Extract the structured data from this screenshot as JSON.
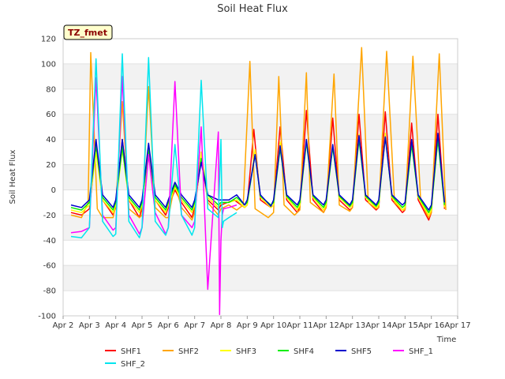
{
  "chart_data": {
    "type": "line",
    "title": "Soil Heat Flux",
    "xlabel": "Time",
    "ylabel": "Soil Heat Flux",
    "badge": "TZ_fmet",
    "xlim": [
      2,
      17
    ],
    "ylim": [
      -100,
      120
    ],
    "xticks": [
      {
        "v": 2,
        "label": "Apr 2"
      },
      {
        "v": 3,
        "label": "Apr 3"
      },
      {
        "v": 4,
        "label": "Apr 4"
      },
      {
        "v": 5,
        "label": "Apr 5"
      },
      {
        "v": 6,
        "label": "Apr 6"
      },
      {
        "v": 7,
        "label": "Apr 7"
      },
      {
        "v": 8,
        "label": "Apr 8"
      },
      {
        "v": 9,
        "label": "Apr 9"
      },
      {
        "v": 10,
        "label": "Apr 10"
      },
      {
        "v": 11,
        "label": "Apr 11"
      },
      {
        "v": 12,
        "label": "Apr 12"
      },
      {
        "v": 13,
        "label": "Apr 13"
      },
      {
        "v": 14,
        "label": "Apr 14"
      },
      {
        "v": 15,
        "label": "Apr 15"
      },
      {
        "v": 16,
        "label": "Apr 16"
      },
      {
        "v": 17,
        "label": "Apr 17"
      }
    ],
    "yticks": [
      -100,
      -80,
      -60,
      -40,
      -20,
      0,
      20,
      40,
      60,
      80,
      100,
      120
    ],
    "grid": true,
    "legend_position": "bottom",
    "series": [
      {
        "name": "SHF1",
        "color": "#ff0000",
        "x": [
          2.3,
          2.7,
          3.0,
          3.25,
          3.5,
          3.9,
          4.0,
          4.25,
          4.5,
          4.9,
          5.0,
          5.25,
          5.5,
          5.9,
          6.0,
          6.25,
          6.5,
          6.9,
          7.0,
          7.25,
          7.5,
          7.9,
          8.0,
          8.25,
          8.5,
          8.9,
          9.0,
          9.25,
          9.5,
          9.9,
          10.0,
          10.25,
          10.5,
          10.9,
          11.0,
          11.25,
          11.5,
          11.9,
          12.0,
          12.25,
          12.5,
          12.9,
          13.0,
          13.25,
          13.5,
          13.9,
          14.0,
          14.25,
          14.5,
          14.9,
          15.0,
          15.25,
          15.5,
          15.9,
          16.0,
          16.25,
          16.5
        ],
        "y": [
          -18,
          -20,
          -15,
          35,
          -8,
          -20,
          -14,
          40,
          -8,
          -22,
          -14,
          35,
          -8,
          -20,
          -14,
          0,
          -10,
          -22,
          -14,
          25,
          -8,
          -16,
          -12,
          -10,
          -8,
          -14,
          -12,
          48,
          -8,
          -14,
          -12,
          50,
          -8,
          -18,
          -14,
          63,
          -8,
          -18,
          -14,
          57,
          -8,
          -16,
          -14,
          60,
          -8,
          -16,
          -14,
          62,
          -8,
          -18,
          -16,
          53,
          -8,
          -24,
          -18,
          60,
          -15
        ]
      },
      {
        "name": "SHF2",
        "color": "#ffa500",
        "x": [
          2.3,
          2.7,
          2.95,
          3.05,
          3.3,
          3.5,
          3.9,
          4.0,
          4.25,
          4.5,
          4.9,
          5.0,
          5.25,
          5.5,
          5.9,
          6.0,
          6.25,
          6.5,
          6.9,
          7.0,
          7.25,
          7.5,
          7.9,
          8.0,
          8.3,
          8.6,
          8.85,
          9.1,
          9.3,
          9.8,
          10.0,
          10.2,
          10.4,
          10.8,
          11.0,
          11.25,
          11.4,
          11.9,
          12.0,
          12.3,
          12.5,
          12.9,
          13.0,
          13.35,
          13.6,
          13.9,
          14.0,
          14.3,
          14.6,
          14.9,
          15.0,
          15.3,
          15.6,
          15.9,
          16.0,
          16.3,
          16.55
        ],
        "y": [
          -20,
          -22,
          -10,
          109,
          -15,
          -22,
          -22,
          -12,
          70,
          -15,
          -22,
          -20,
          82,
          -14,
          -22,
          -22,
          5,
          -14,
          -24,
          -18,
          30,
          -10,
          -20,
          -15,
          -12,
          -16,
          -12,
          102,
          -15,
          -22,
          -18,
          90,
          -12,
          -20,
          -16,
          93,
          -10,
          -18,
          -14,
          92,
          -12,
          -17,
          -14,
          113,
          -10,
          -15,
          -14,
          110,
          -10,
          -16,
          -16,
          106,
          -10,
          -22,
          -18,
          108,
          -16
        ]
      },
      {
        "name": "SHF3",
        "color": "#ffff00",
        "x": [
          2.3,
          2.7,
          3.0,
          3.25,
          3.5,
          3.9,
          4.0,
          4.25,
          4.5,
          4.9,
          5.0,
          5.25,
          5.5,
          5.9,
          6.0,
          6.25,
          6.5,
          6.9,
          7.0,
          7.25,
          7.5,
          7.9,
          8.0,
          8.3,
          8.6,
          8.9,
          9.0,
          9.3,
          9.5,
          9.9,
          10.0,
          10.25,
          10.5,
          10.9,
          11.0,
          11.25,
          11.5,
          11.9,
          12.0,
          12.25,
          12.5,
          12.9,
          13.0,
          13.25,
          13.5,
          13.9,
          14.0,
          14.25,
          14.5,
          14.9,
          15.0,
          15.25,
          15.5,
          15.9,
          16.0,
          16.25,
          16.5
        ],
        "y": [
          -16,
          -18,
          -12,
          30,
          -8,
          -18,
          -12,
          32,
          -8,
          -18,
          -12,
          30,
          -8,
          -18,
          -12,
          2,
          -8,
          -18,
          -12,
          30,
          -6,
          -14,
          -10,
          -10,
          -8,
          -14,
          -12,
          32,
          -6,
          -14,
          -12,
          38,
          -6,
          -16,
          -12,
          40,
          -6,
          -16,
          -12,
          36,
          -6,
          -14,
          -12,
          44,
          -6,
          -14,
          -12,
          45,
          -6,
          -16,
          -14,
          38,
          -6,
          -20,
          -16,
          42,
          -14
        ]
      },
      {
        "name": "SHF4",
        "color": "#00ee00",
        "x": [
          2.3,
          2.7,
          3.0,
          3.25,
          3.5,
          3.9,
          4.0,
          4.25,
          4.5,
          4.9,
          5.0,
          5.25,
          5.5,
          5.9,
          6.0,
          6.25,
          6.5,
          6.9,
          7.0,
          7.25,
          7.5,
          7.9,
          8.0,
          8.3,
          8.6,
          8.9,
          9.0,
          9.3,
          9.5,
          9.9,
          10.0,
          10.25,
          10.5,
          10.9,
          11.0,
          11.25,
          11.5,
          11.9,
          12.0,
          12.25,
          12.5,
          12.9,
          13.0,
          13.25,
          13.5,
          13.9,
          14.0,
          14.25,
          14.5,
          14.9,
          15.0,
          15.25,
          15.5,
          15.9,
          16.0,
          16.25,
          16.5
        ],
        "y": [
          -14,
          -16,
          -10,
          36,
          -6,
          -16,
          -10,
          34,
          -6,
          -16,
          -10,
          33,
          -6,
          -16,
          -10,
          4,
          -6,
          -16,
          -10,
          25,
          -4,
          -12,
          -10,
          -10,
          -6,
          -12,
          -10,
          28,
          -5,
          -12,
          -10,
          33,
          -5,
          -14,
          -10,
          38,
          -5,
          -14,
          -10,
          34,
          -5,
          -13,
          -10,
          40,
          -5,
          -13,
          -10,
          42,
          -5,
          -14,
          -12,
          36,
          -5,
          -18,
          -14,
          40,
          -12
        ]
      },
      {
        "name": "SHF5",
        "color": "#0000cd",
        "x": [
          2.3,
          2.7,
          3.0,
          3.25,
          3.5,
          3.9,
          4.0,
          4.25,
          4.5,
          4.9,
          5.0,
          5.25,
          5.5,
          5.9,
          6.0,
          6.25,
          6.5,
          6.9,
          7.0,
          7.25,
          7.5,
          7.9,
          8.0,
          8.3,
          8.6,
          8.9,
          9.0,
          9.3,
          9.5,
          9.9,
          10.0,
          10.25,
          10.5,
          10.9,
          11.0,
          11.25,
          11.5,
          11.9,
          12.0,
          12.25,
          12.5,
          12.9,
          13.0,
          13.25,
          13.5,
          13.9,
          14.0,
          14.25,
          14.5,
          14.9,
          15.0,
          15.25,
          15.5,
          15.9,
          16.0,
          16.25,
          16.5
        ],
        "y": [
          -12,
          -14,
          -8,
          40,
          -4,
          -14,
          -8,
          40,
          -4,
          -14,
          -8,
          37,
          -4,
          -14,
          -8,
          6,
          -4,
          -14,
          -8,
          22,
          -4,
          -8,
          -8,
          -8,
          -4,
          -12,
          -8,
          28,
          -4,
          -13,
          -8,
          35,
          -4,
          -12,
          -8,
          40,
          -4,
          -12,
          -8,
          36,
          -4,
          -12,
          -8,
          43,
          -4,
          -12,
          -8,
          42,
          -4,
          -12,
          -10,
          40,
          -4,
          -16,
          -12,
          45,
          -10
        ]
      },
      {
        "name": "SHF_1",
        "color": "#ff00ff",
        "x": [
          2.3,
          2.7,
          3.0,
          3.25,
          3.5,
          3.9,
          4.0,
          4.25,
          4.5,
          4.9,
          5.0,
          5.25,
          5.5,
          5.9,
          6.0,
          6.25,
          6.5,
          6.9,
          7.0,
          7.25,
          7.5,
          7.9,
          7.95,
          8.0,
          8.05,
          8.1,
          8.3,
          8.6
        ],
        "y": [
          -34,
          -33,
          -30,
          89,
          -20,
          -32,
          -30,
          90,
          -20,
          -35,
          -30,
          28,
          -18,
          -35,
          -30,
          86,
          -20,
          -30,
          -25,
          50,
          -79,
          46,
          -99,
          -40,
          -20,
          -15,
          -14,
          -12
        ]
      },
      {
        "name": "SHF_2",
        "color": "#00e5ee",
        "x": [
          2.3,
          2.7,
          3.0,
          3.25,
          3.5,
          3.9,
          4.0,
          4.25,
          4.5,
          4.9,
          5.0,
          5.25,
          5.5,
          5.9,
          6.0,
          6.25,
          6.5,
          6.9,
          7.0,
          7.25,
          7.5,
          7.9,
          8.0,
          8.05,
          8.1,
          8.3,
          8.6
        ],
        "y": [
          -37,
          -38,
          -30,
          104,
          -25,
          -37,
          -35,
          108,
          -25,
          -38,
          -30,
          105,
          -25,
          -36,
          -30,
          36,
          -20,
          -36,
          -30,
          87,
          -15,
          -22,
          40,
          -30,
          -25,
          -22,
          -18
        ]
      }
    ]
  }
}
